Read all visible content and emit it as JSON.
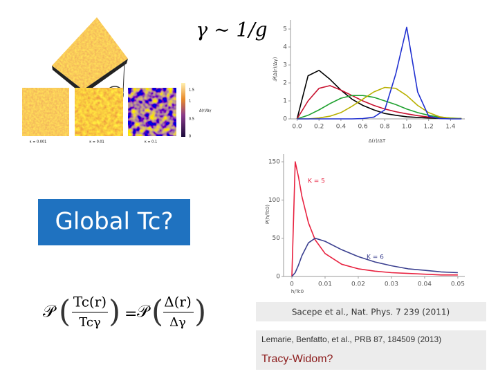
{
  "slide": {
    "title": "γ ∼ 1/g",
    "maps": {
      "labels": [
        "κ = 0.001",
        "κ = 0.01",
        "κ = 0.1"
      ],
      "colorbar_ticks": [
        "0",
        "0.5",
        "1",
        "1.5"
      ],
      "colorbar_label": "Δ(r)/Δγ"
    },
    "question": "Global Tc?",
    "formula": {
      "lhs_p": "𝒫",
      "lhs_num": "Tc(r)",
      "lhs_den": "Tcγ",
      "eq": "=",
      "rhs_p": "𝒫",
      "rhs_num": "Δ(r)",
      "rhs_den": "Δγ"
    },
    "citation_1": "Sacepe et al., Nat. Phys. 7 239 (2011)",
    "citation_2": "Lemarie, Benfatto, et al., PRB 87, 184509 (2013)",
    "note": "Tracy-Widom?"
  },
  "chart_data": [
    {
      "type": "line",
      "x_label": "Δ(r)/ΔT",
      "y_label": "𝒫(Δ(r)/Δγ)",
      "x": [
        0,
        0.1,
        0.2,
        0.3,
        0.4,
        0.5,
        0.6,
        0.7,
        0.8,
        0.9,
        1.0,
        1.1,
        1.2,
        1.3,
        1.4,
        1.5
      ],
      "series": [
        {
          "color": "#000000",
          "values": [
            0,
            2.4,
            2.7,
            2.2,
            1.6,
            1.1,
            0.75,
            0.5,
            0.3,
            0.2,
            0.12,
            0.08,
            0.05,
            0.03,
            0.02,
            0.01
          ]
        },
        {
          "color": "#c8102e",
          "values": [
            0,
            1.0,
            1.7,
            1.85,
            1.6,
            1.3,
            1.0,
            0.75,
            0.55,
            0.4,
            0.28,
            0.18,
            0.1,
            0.05,
            0.03,
            0.02
          ]
        },
        {
          "color": "#1fa12f",
          "values": [
            0,
            0.2,
            0.5,
            0.85,
            1.15,
            1.3,
            1.3,
            1.2,
            1.0,
            0.8,
            0.55,
            0.35,
            0.2,
            0.1,
            0.05,
            0.02
          ]
        },
        {
          "color": "#b8b000",
          "values": [
            0,
            0,
            0.05,
            0.15,
            0.35,
            0.7,
            1.1,
            1.5,
            1.75,
            1.7,
            1.3,
            0.75,
            0.35,
            0.12,
            0.04,
            0.01
          ]
        },
        {
          "color": "#1f2fd0",
          "values": [
            0,
            0,
            0,
            0,
            0,
            0,
            0.02,
            0.1,
            0.5,
            2.5,
            5.1,
            1.5,
            0.15,
            0.02,
            0,
            0
          ]
        }
      ],
      "xlim": [
        -0.06,
        1.53
      ],
      "ylim": [
        0,
        5.5
      ],
      "xticks": [
        {
          "value": 0,
          "label": "0.0"
        },
        0.2,
        0.4,
        0.6,
        0.8,
        {
          "value": 1,
          "label": "1.0"
        },
        1.2,
        1.4
      ],
      "yticks": [
        0,
        1,
        2,
        3,
        4,
        5
      ]
    },
    {
      "type": "line",
      "x_label": "h/Tc0",
      "y_label": "P(h/Tc0)",
      "x": [
        0,
        0.001,
        0.002,
        0.003,
        0.005,
        0.007,
        0.01,
        0.015,
        0.02,
        0.025,
        0.03,
        0.035,
        0.04,
        0.045,
        0.05
      ],
      "series": [
        {
          "name": "K = 5",
          "color": "#e8213f",
          "values": [
            0,
            150,
            130,
            105,
            70,
            48,
            30,
            16,
            10,
            7,
            5,
            4,
            3,
            2,
            2
          ]
        },
        {
          "name": "K = 6",
          "color": "#3a3f8f",
          "values": [
            0,
            5,
            15,
            27,
            44,
            50,
            46,
            35,
            26,
            19,
            14,
            10,
            8,
            6,
            5
          ]
        }
      ],
      "xlim": [
        -0.0025,
        0.0521
      ],
      "ylim": [
        0,
        160
      ],
      "xticks": [
        0,
        0.01,
        0.02,
        0.03,
        0.04,
        0.05
      ],
      "yticks": [
        0,
        50,
        100,
        150
      ]
    }
  ]
}
